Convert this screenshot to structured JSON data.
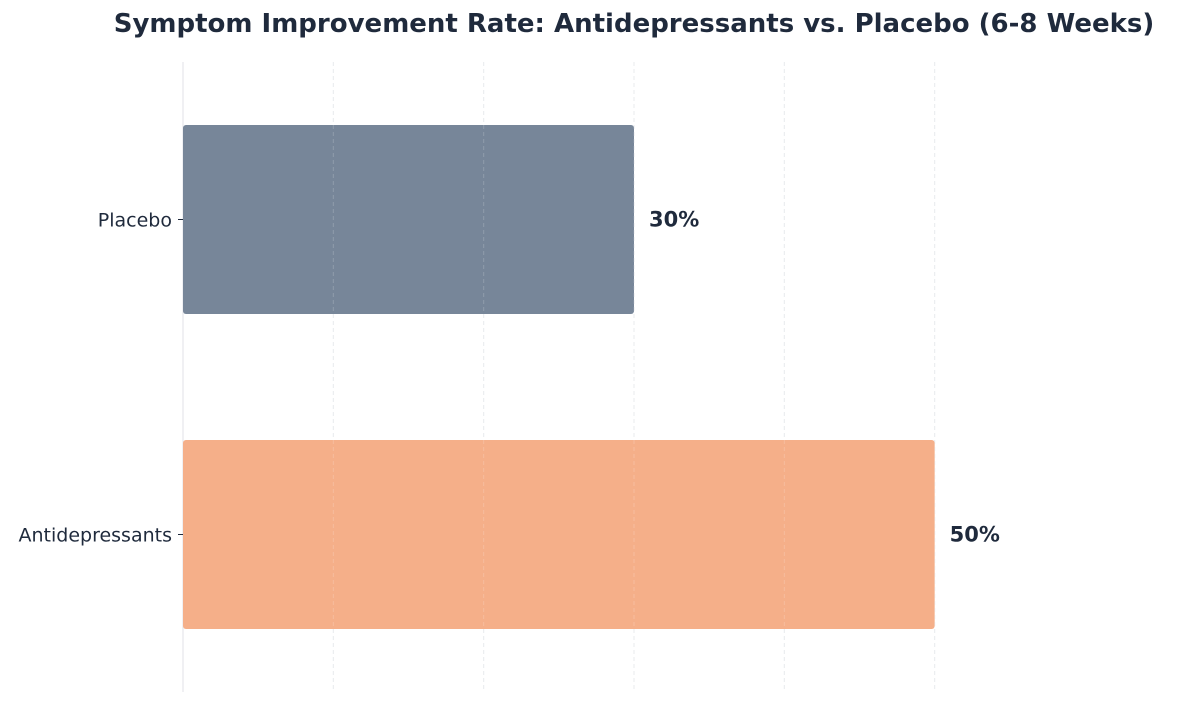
{
  "chart_data": {
    "type": "bar",
    "orientation": "horizontal",
    "title": "Symptom Improvement Rate: Antidepressants vs. Placebo (6-8 Weeks)",
    "xlabel": "",
    "ylabel": "",
    "categories": [
      "Placebo",
      "Antidepressants"
    ],
    "values": [
      30,
      50
    ],
    "data_labels": [
      "30%",
      "50%"
    ],
    "colors": [
      "#778699",
      "#f5af89"
    ],
    "xlim": [
      0,
      60
    ],
    "grid": "vertical dashed",
    "legend": "none"
  },
  "theme": {
    "text_color": "#1f2a3c",
    "grid_color": "#e5e7eb",
    "axis_color": "#e5e7eb"
  }
}
